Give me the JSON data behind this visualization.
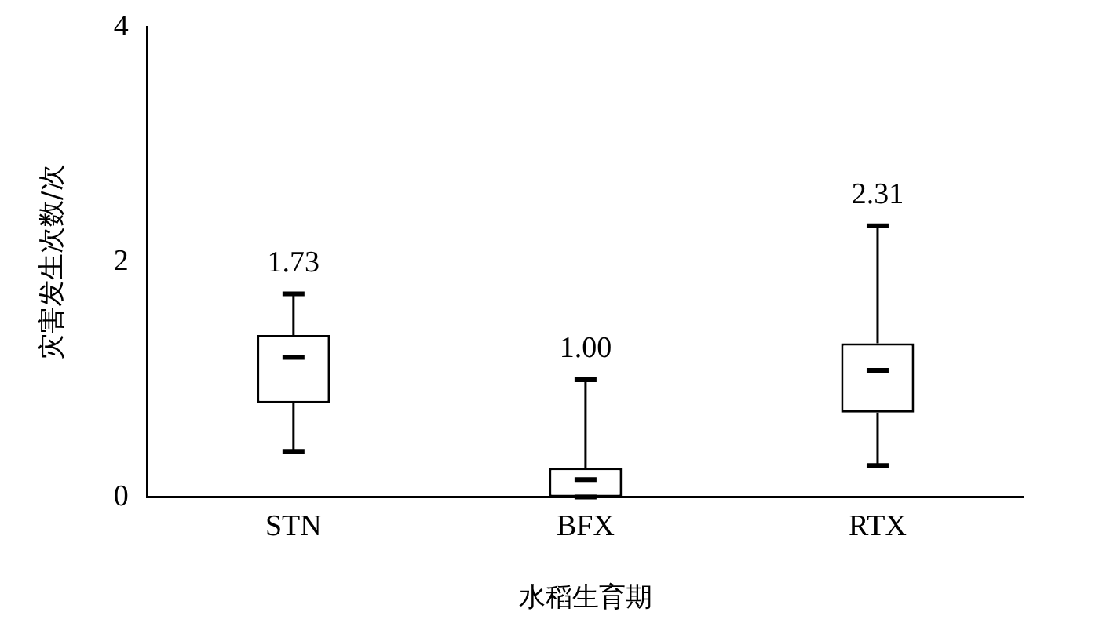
{
  "chart_data": {
    "type": "box",
    "xlabel": "水稻生育期",
    "ylabel": "灾害发生次数/次",
    "categories": [
      "STN",
      "BFX",
      "RTX"
    ],
    "boxes": [
      {
        "low": 0.39,
        "q1": 0.8,
        "median": 1.19,
        "q3": 1.38,
        "high": 1.73
      },
      {
        "low": 0,
        "q1": 0,
        "median": 0.15,
        "q3": 0.25,
        "high": 1.0
      },
      {
        "low": 0.27,
        "q1": 0.72,
        "median": 1.08,
        "q3": 1.31,
        "high": 2.31
      }
    ],
    "color": "#000000",
    "ylim": [
      0,
      4
    ],
    "yticks": [
      0,
      2,
      4
    ],
    "grid": false,
    "legend": false,
    "annotations": [
      {
        "text": "1.73",
        "x": "STN",
        "y": 1.73
      },
      {
        "text": "1.00",
        "x": "BFX",
        "y": 1.0
      },
      {
        "text": "2.31",
        "x": "RTX",
        "y": 2.31
      }
    ]
  }
}
